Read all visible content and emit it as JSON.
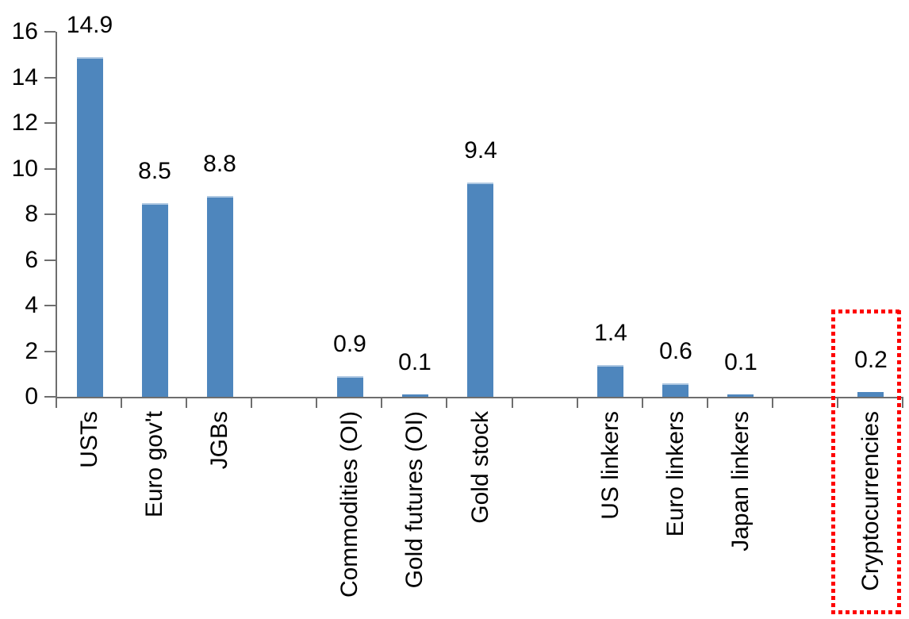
{
  "chart_data": {
    "type": "bar",
    "title": "",
    "xlabel": "",
    "ylabel": "",
    "categories": [
      "USTs",
      "Euro gov't",
      "JGBs",
      "Commodities (OI)",
      "Gold futures (OI)",
      "Gold stock",
      "US linkers",
      "Euro linkers",
      "Japan linkers",
      "Cryptocurrencies"
    ],
    "values": [
      14.9,
      8.5,
      8.8,
      0.9,
      0.1,
      9.4,
      1.4,
      0.6,
      0.1,
      0.2
    ],
    "data_labels": [
      "14.9",
      "8.5",
      "8.8",
      "0.9",
      "0.1",
      "9.4",
      "1.4",
      "0.6",
      "0.1",
      "0.2"
    ],
    "slot_indices": [
      0,
      1,
      2,
      4,
      5,
      6,
      8,
      9,
      10,
      12
    ],
    "total_slots": 13,
    "y_ticks": [
      "0",
      "2",
      "4",
      "6",
      "8",
      "10",
      "12",
      "14",
      "16"
    ],
    "ylim": [
      0,
      16
    ],
    "grid": false,
    "legend": false,
    "bar_color": "#4e86bd",
    "bar_top_edge_color": "#aec8e2",
    "axis_color": "#6e6e6e",
    "label_color": "#000000",
    "annotation": {
      "type": "dotted-box",
      "color": "#fe0000",
      "around_category": "Cryptocurrencies"
    }
  }
}
